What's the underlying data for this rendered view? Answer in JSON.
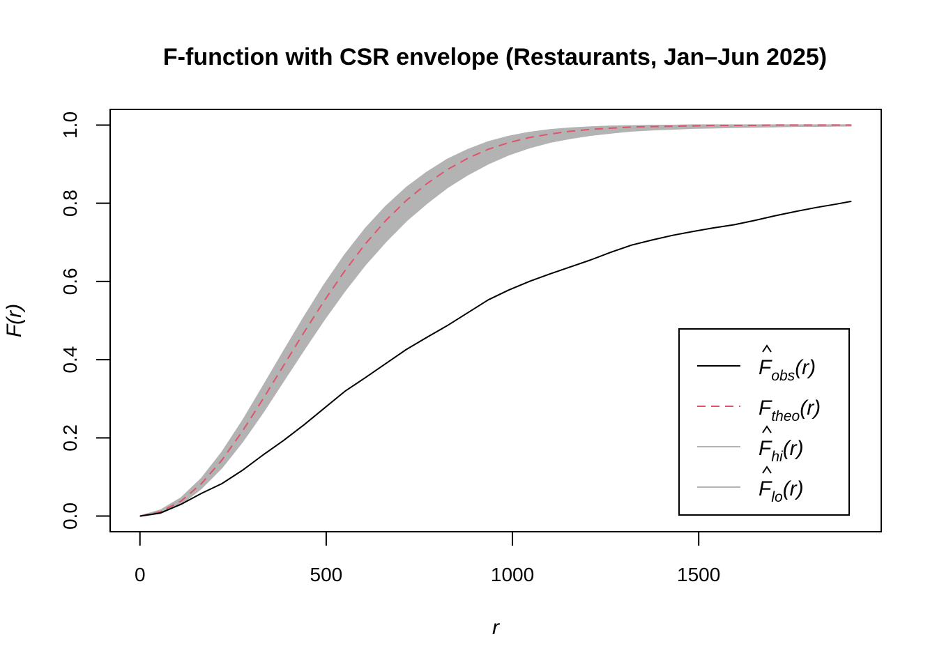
{
  "chart_data": {
    "type": "line",
    "title": "F-function with CSR envelope (Restaurants, Jan–Jun 2025)",
    "xlabel": "r",
    "ylabel_main": "F",
    "ylabel_arg": "(r)",
    "xlim": [
      -80,
      1990
    ],
    "ylim": [
      -0.04,
      1.04
    ],
    "x_ticks": [
      0,
      500,
      1000,
      1500
    ],
    "y_ticks": [
      0.0,
      0.2,
      0.4,
      0.6,
      0.8,
      1.0
    ],
    "x_tick_labels": [
      "0",
      "500",
      "1000",
      "1500"
    ],
    "y_tick_labels": [
      "0.0",
      "0.2",
      "0.4",
      "0.6",
      "0.8",
      "1.0"
    ],
    "x": [
      0,
      55,
      110,
      165,
      220,
      275,
      330,
      385,
      440,
      495,
      550,
      605,
      660,
      715,
      770,
      825,
      880,
      935,
      990,
      1045,
      1100,
      1155,
      1210,
      1265,
      1320,
      1375,
      1430,
      1485,
      1540,
      1595,
      1650,
      1705,
      1760,
      1815,
      1870,
      1910
    ],
    "series": [
      {
        "name": "obs",
        "style": "solid",
        "color": "#000000",
        "values": [
          0.0,
          0.008,
          0.03,
          0.058,
          0.083,
          0.117,
          0.156,
          0.193,
          0.233,
          0.276,
          0.319,
          0.354,
          0.39,
          0.426,
          0.457,
          0.487,
          0.52,
          0.553,
          0.578,
          0.6,
          0.619,
          0.637,
          0.655,
          0.675,
          0.693,
          0.706,
          0.718,
          0.728,
          0.737,
          0.745,
          0.756,
          0.768,
          0.779,
          0.789,
          0.798,
          0.805
        ]
      },
      {
        "name": "theo",
        "style": "dashed",
        "color": "#df536b",
        "values": [
          0.0,
          0.011,
          0.038,
          0.083,
          0.143,
          0.217,
          0.299,
          0.384,
          0.469,
          0.551,
          0.627,
          0.696,
          0.756,
          0.807,
          0.85,
          0.886,
          0.915,
          0.938,
          0.955,
          0.968,
          0.977,
          0.984,
          0.989,
          0.992,
          0.995,
          0.996,
          0.997,
          0.998,
          0.999,
          0.999,
          0.999,
          1.0,
          1.0,
          1.0,
          1.0,
          1.0
        ]
      },
      {
        "name": "hi",
        "style": "solid",
        "color": "#b3b3b3",
        "values": [
          0.0,
          0.015,
          0.046,
          0.096,
          0.163,
          0.243,
          0.331,
          0.42,
          0.508,
          0.592,
          0.668,
          0.735,
          0.792,
          0.84,
          0.879,
          0.912,
          0.937,
          0.957,
          0.971,
          0.981,
          0.988,
          0.992,
          0.995,
          0.997,
          0.998,
          0.999,
          0.999,
          1.0,
          1.0,
          1.0,
          1.0,
          1.0,
          1.0,
          1.0,
          1.0,
          1.0
        ]
      },
      {
        "name": "lo",
        "style": "solid",
        "color": "#b3b3b3",
        "values": [
          0.0,
          0.007,
          0.03,
          0.071,
          0.124,
          0.19,
          0.265,
          0.345,
          0.425,
          0.503,
          0.576,
          0.643,
          0.702,
          0.755,
          0.8,
          0.84,
          0.873,
          0.901,
          0.924,
          0.942,
          0.956,
          0.966,
          0.974,
          0.98,
          0.985,
          0.988,
          0.99,
          0.992,
          0.993,
          0.994,
          0.995,
          0.996,
          0.997,
          0.997,
          0.998,
          0.998
        ]
      }
    ],
    "band_color": "#b3b3b3",
    "legend": {
      "position": "bottom-right",
      "entries": [
        {
          "hat": true,
          "main": "F",
          "sub": "obs",
          "arg": "(r)",
          "color": "#000000",
          "style": "solid"
        },
        {
          "hat": false,
          "main": "F",
          "sub": "theo",
          "arg": "(r)",
          "color": "#df536b",
          "style": "dashed"
        },
        {
          "hat": true,
          "main": "F",
          "sub": "hi",
          "arg": "(r)",
          "color": "#b3b3b3",
          "style": "solid"
        },
        {
          "hat": true,
          "main": "F",
          "sub": "lo",
          "arg": "(r)",
          "color": "#b3b3b3",
          "style": "solid"
        }
      ]
    },
    "grid": false
  }
}
